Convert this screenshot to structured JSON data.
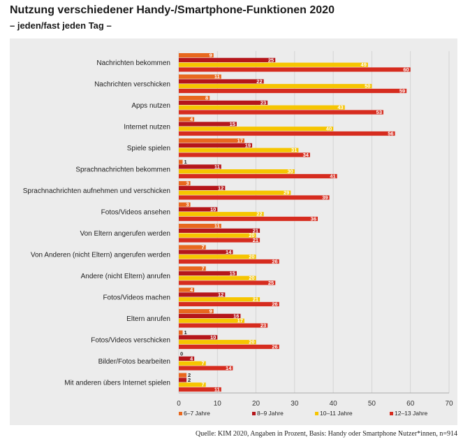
{
  "title": "Nutzung verschiedener Handy-/Smartphone-Funktionen 2020",
  "subtitle": "– jeden/fast jeden Tag –",
  "source": "Quelle: KIM 2020, Angaben in Prozent, Basis: Handy oder Smartphone Nutzer*innen, n=914",
  "chart_data": {
    "type": "bar",
    "orientation": "horizontal",
    "title": "Nutzung verschiedener Handy-/Smartphone-Funktionen 2020",
    "subtitle": "– jeden/fast jeden Tag –",
    "categories": [
      "Nachrichten bekommen",
      "Nachrichten verschicken",
      "Apps nutzen",
      "Internet nutzen",
      "Spiele spielen",
      "Sprachnachrichten bekommen",
      "Sprachnachrichten aufnehmen und verschicken",
      "Fotos/Videos ansehen",
      "Von Eltern angerufen werden",
      "Von Anderen (nicht Eltern) angerufen werden",
      "Andere (nicht Eltern) anrufen",
      "Fotos/Videos machen",
      "Eltern anrufen",
      "Fotos/Videos verschicken",
      "Bilder/Fotos bearbeiten",
      "Mit anderen übers Internet spielen"
    ],
    "series": [
      {
        "name": "6–7 Jahre",
        "color": "#e8681e",
        "values": [
          9,
          11,
          8,
          4,
          17,
          1,
          3,
          3,
          11,
          7,
          7,
          4,
          9,
          1,
          0,
          2
        ]
      },
      {
        "name": "8–9 Jahre",
        "color": "#b5161b",
        "values": [
          25,
          22,
          23,
          15,
          19,
          11,
          12,
          10,
          21,
          14,
          15,
          12,
          16,
          10,
          4,
          2
        ]
      },
      {
        "name": "10–11 Jahre",
        "color": "#f6c500",
        "values": [
          49,
          50,
          43,
          40,
          31,
          30,
          29,
          22,
          20,
          20,
          20,
          21,
          17,
          20,
          7,
          7
        ]
      },
      {
        "name": "12–13 Jahre",
        "color": "#d62c1f",
        "values": [
          60,
          59,
          53,
          56,
          34,
          41,
          39,
          36,
          21,
          26,
          25,
          26,
          23,
          26,
          14,
          11
        ]
      }
    ],
    "xlim": [
      0,
      70
    ],
    "xticks": [
      0,
      10,
      20,
      30,
      40,
      50,
      60,
      70
    ],
    "grid": true,
    "legend_position": "bottom"
  }
}
